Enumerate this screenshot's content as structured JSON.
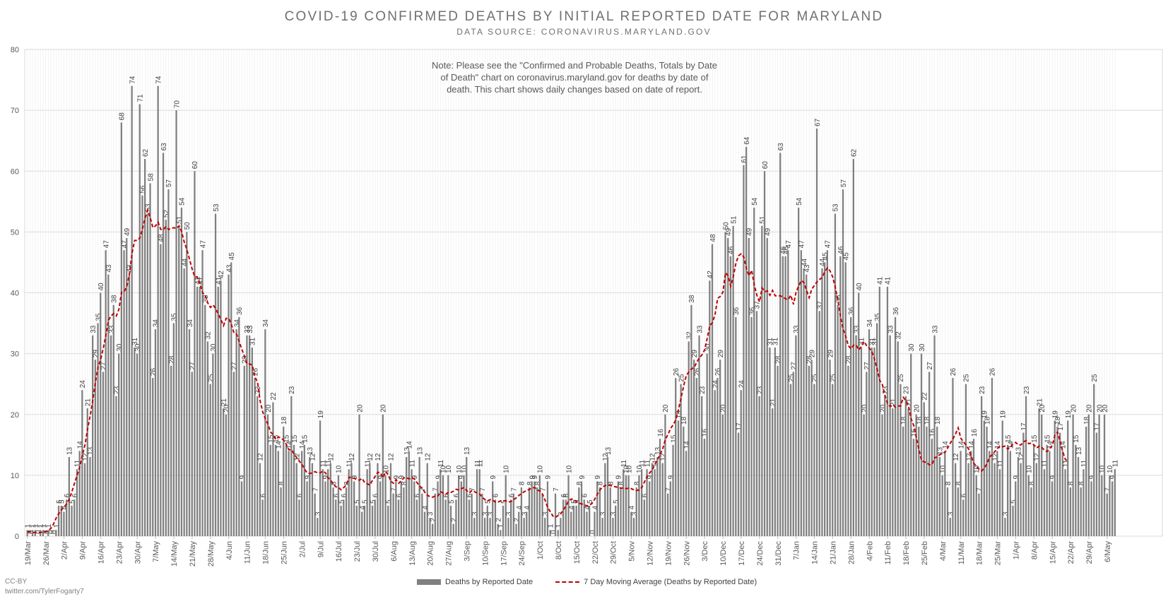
{
  "chart_data": {
    "type": "bar",
    "title": "COVID-19 CONFIRMED DEATHS BY INITIAL REPORTED DATE FOR MARYLAND",
    "subtitle": "DATA SOURCE: CORONAVIRUS.MARYLAND.GOV",
    "note": "Note: Please see the \"Confirmed and Probable Deaths, Totals by Date of Death\" chart on coronavirus.maryland.gov for deaths by date of death. This chart shows daily changes based on date of report.",
    "ylim": [
      0,
      80
    ],
    "yticks": [
      "0",
      "10",
      "20",
      "30",
      "40",
      "50",
      "60",
      "70",
      "80"
    ],
    "grid": true,
    "legend_position": "bottom",
    "x_tick_labels": [
      "19/Mar",
      "26/Mar",
      "2/Apr",
      "9/Apr",
      "16/Apr",
      "23/Apr",
      "30/Apr",
      "7/May",
      "14/May",
      "21/May",
      "28/May",
      "4/Jun",
      "11/Jun",
      "18/Jun",
      "25/Jun",
      "2/Jul",
      "9/Jul",
      "16/Jul",
      "23/Jul",
      "30/Jul",
      "6/Aug",
      "13/Aug",
      "20/Aug",
      "27/Aug",
      "3/Sep",
      "10/Sep",
      "17/Sep",
      "24/Sep",
      "1/Oct",
      "8/Oct",
      "15/Oct",
      "22/Oct",
      "29/Oct",
      "5/Nov",
      "12/Nov",
      "19/Nov",
      "26/Nov",
      "3/Dec",
      "10/Dec",
      "17/Dec",
      "24/Dec",
      "31/Dec",
      "7/Jan",
      "14/Jan",
      "21/Jan",
      "28/Jan",
      "4/Feb",
      "11/Feb",
      "18/Feb",
      "25/Feb",
      "4/Mar",
      "11/Mar",
      "18/Mar",
      "25/Mar",
      "1/Apr",
      "8/Apr",
      "15/Apr",
      "22/Apr",
      "29/Apr",
      "6/May"
    ],
    "series": [
      {
        "name": "Deaths by Reported Date",
        "type": "bar",
        "color": "#808080",
        "weekly_values": [
          [
            1,
            0,
            1,
            1,
            0,
            1,
            1
          ],
          [
            0,
            1,
            0,
            0,
            1,
            5,
            5
          ],
          [
            4,
            6,
            13,
            5,
            6,
            11,
            14
          ],
          [
            24,
            12,
            21,
            13,
            33,
            29,
            35
          ],
          [
            40,
            27,
            47,
            43,
            33,
            38,
            23
          ],
          [
            30,
            68,
            47,
            49,
            43,
            74,
            31
          ],
          [
            30,
            71,
            56,
            62,
            53,
            58,
            26
          ],
          [
            34,
            74,
            48,
            63,
            52,
            57,
            28
          ],
          [
            35,
            70,
            51,
            54,
            44,
            50,
            34
          ],
          [
            27,
            60,
            41,
            41,
            47,
            38,
            32
          ],
          [
            25,
            30,
            53,
            41,
            42,
            21,
            20
          ],
          [
            43,
            45,
            27,
            34,
            36,
            9,
            28
          ],
          [
            33,
            33,
            31,
            26,
            23,
            12,
            6
          ],
          [
            34,
            20,
            15,
            22,
            15,
            14,
            8
          ],
          [
            18,
            15,
            14,
            23,
            15,
            12,
            6
          ],
          [
            14,
            15,
            9,
            13,
            12,
            7,
            3
          ],
          [
            19,
            11,
            9,
            11,
            12,
            8,
            6
          ],
          [
            10,
            5,
            6,
            8,
            11,
            12,
            9
          ],
          [
            5,
            20,
            4,
            5,
            11,
            12,
            5
          ],
          [
            6,
            12,
            9,
            20,
            10,
            5,
            12
          ],
          [
            7,
            9,
            6,
            9,
            8,
            13,
            14
          ],
          [
            11,
            9,
            6,
            13,
            7,
            4,
            12
          ],
          [
            3,
            2,
            7,
            9,
            11,
            10,
            6
          ],
          [
            10,
            5,
            2,
            6,
            10,
            9,
            10
          ],
          [
            13,
            6,
            7,
            3,
            11,
            11,
            7
          ],
          [
            3,
            5,
            3,
            9,
            6,
            2,
            1
          ],
          [
            5,
            10,
            3,
            6,
            7,
            2,
            4
          ],
          [
            8,
            3,
            4,
            8,
            9,
            9,
            8
          ],
          [
            10,
            7,
            3,
            9,
            1,
            0,
            7
          ],
          [
            1,
            3,
            6,
            6,
            10,
            4,
            5
          ],
          [
            5,
            8,
            9,
            6,
            4,
            5,
            0
          ],
          [
            4,
            9,
            8,
            3,
            12,
            13,
            8
          ],
          [
            3,
            5,
            9,
            8,
            11,
            10,
            10
          ],
          [
            4,
            3,
            8,
            10,
            11,
            6,
            11
          ],
          [
            9,
            12,
            11,
            13,
            16,
            12,
            20
          ],
          [
            7,
            9,
            15,
            26,
            19,
            25,
            18
          ],
          [
            14,
            32,
            38,
            29,
            26,
            33,
            23
          ],
          [
            16,
            30,
            42,
            48,
            24,
            26,
            29
          ],
          [
            20,
            50,
            49,
            46,
            51,
            36,
            17
          ],
          [
            24,
            61,
            64,
            49,
            36,
            54,
            37
          ],
          [
            23,
            51,
            60,
            49,
            31,
            21,
            31
          ],
          [
            28,
            63,
            46,
            46,
            47,
            25,
            27
          ],
          [
            33,
            54,
            47,
            44,
            43,
            28,
            29
          ],
          [
            25,
            67,
            37,
            44,
            45,
            47,
            29
          ],
          [
            25,
            53,
            38,
            46,
            57,
            45,
            28
          ],
          [
            36,
            62,
            33,
            40,
            31,
            20,
            27
          ],
          [
            34,
            31,
            31,
            35,
            41,
            20,
            23
          ],
          [
            41,
            33,
            21,
            36,
            32,
            25,
            18
          ],
          [
            23,
            21,
            30,
            16,
            20,
            18,
            30
          ],
          [
            22,
            18,
            27,
            16,
            33,
            18,
            13
          ],
          [
            10,
            14,
            8,
            3,
            26,
            12,
            8
          ],
          [
            14,
            6,
            25,
            12,
            14,
            16,
            10
          ],
          [
            7,
            23,
            19,
            18,
            14,
            26,
            12
          ],
          [
            14,
            11,
            19,
            3,
            15,
            14,
            5
          ],
          [
            9,
            13,
            12,
            17,
            23,
            10,
            8
          ],
          [
            15,
            12,
            21,
            20,
            11,
            15,
            14
          ],
          [
            9,
            19,
            18,
            17,
            14,
            11,
            19
          ],
          [
            8,
            20,
            15,
            13,
            8,
            11,
            18
          ],
          [
            20,
            9,
            25,
            17,
            20,
            10,
            20
          ],
          [
            7,
            10,
            9,
            11
          ]
        ]
      },
      {
        "name": "7 Day Moving Average (Deaths by Reported Date)",
        "type": "line",
        "style": "dashed",
        "color": "#c00000",
        "weekly_values": [
          [
            0.7,
            0.7,
            0.6,
            0.6,
            0.6,
            0.6,
            0.7
          ],
          [
            0.7,
            0.9,
            1.3,
            2.0,
            3.0,
            3.7,
            4.3
          ],
          [
            4.8,
            5.3,
            6.1,
            7.3,
            8.7,
            10.0,
            11.4
          ],
          [
            13.3,
            15.0,
            17.6,
            19.8,
            22.4,
            25.3,
            27.8
          ],
          [
            29.0,
            30.9,
            33.0,
            35.5,
            36.2,
            36.6,
            36.2
          ],
          [
            37.3,
            40.1,
            40.2,
            41.0,
            43.1,
            46.5,
            48.6
          ],
          [
            48.6,
            49.0,
            50.5,
            52.3,
            53.6,
            52.3,
            50.7
          ],
          [
            51.0,
            51.6,
            50.4,
            50.4,
            50.9,
            50.4,
            50.6
          ],
          [
            50.7,
            50.6,
            51.0,
            50.0,
            48.3,
            47.1,
            45.5
          ],
          [
            43.9,
            42.6,
            42.6,
            41.5,
            40.0,
            39.6,
            38.3
          ],
          [
            37.6,
            38.0,
            37.4,
            36.5,
            35.6,
            34.6,
            35.8
          ],
          [
            35.8,
            34.8,
            33.4,
            33.2,
            32.0,
            30.7,
            29.6
          ],
          [
            28.3,
            28.3,
            28.1,
            26.2,
            25.3,
            22.2,
            20.4
          ],
          [
            19.3,
            18.4,
            17.1,
            16.7,
            15.9,
            16.3,
            16.1
          ],
          [
            15.8,
            15.1,
            14.2,
            14.2,
            13.5,
            12.9,
            12.3
          ],
          [
            11.8,
            11.0,
            10.4,
            10.3,
            10.4,
            10.6,
            10.4
          ],
          [
            10.4,
            10.7,
            10.4,
            9.6,
            9.2,
            8.5,
            8.1
          ],
          [
            8.0,
            7.6,
            8.0,
            8.4,
            9.7,
            9.6,
            9.5
          ],
          [
            9.3,
            9.2,
            9.5,
            8.8,
            8.6,
            8.4,
            9.2
          ],
          [
            9.8,
            10.5,
            10.4,
            9.6,
            10.6,
            10.1,
            9.0
          ],
          [
            8.7,
            9.3,
            8.7,
            9.1,
            9.6,
            9.6,
            9.4
          ],
          [
            9.6,
            9.4,
            8.8,
            8.2,
            7.9,
            7.2,
            6.7
          ],
          [
            6.5,
            6.4,
            6.6,
            6.6,
            7.3,
            7.1,
            6.9
          ],
          [
            7.2,
            7.2,
            7.4,
            7.7,
            7.6,
            7.8,
            8.0
          ],
          [
            7.5,
            7.1,
            7.5,
            7.3,
            7.1,
            6.9,
            6.4
          ],
          [
            6.0,
            5.8,
            6.0,
            5.9,
            5.6,
            5.6,
            5.8
          ],
          [
            5.8,
            5.8,
            5.6,
            5.7,
            6.0,
            6.3,
            6.7
          ],
          [
            7.0,
            7.3,
            7.5,
            7.7,
            7.9,
            8.0,
            7.6
          ],
          [
            7.4,
            6.9,
            5.9,
            4.7,
            4.0,
            3.3,
            3.1
          ],
          [
            3.4,
            3.7,
            4.3,
            5.0,
            5.8,
            6.1,
            6.0
          ],
          [
            5.7,
            5.4,
            5.3,
            5.1,
            5.0,
            5.1,
            5.4
          ],
          [
            6.1,
            6.9,
            7.6,
            8.1,
            8.3,
            8.4,
            8.3
          ],
          [
            8.2,
            8.1,
            8.0,
            7.9,
            7.9,
            7.8,
            7.9
          ],
          [
            7.8,
            7.6,
            7.5,
            7.6,
            8.0,
            8.9,
            9.8
          ],
          [
            10.4,
            10.9,
            11.8,
            12.6,
            13.4,
            14.4,
            15.9
          ],
          [
            16.7,
            17.7,
            18.3,
            19.1,
            20.8,
            22.7,
            24.7
          ],
          [
            26.4,
            27.0,
            27.5,
            27.7,
            28.6,
            29.3,
            29.8
          ],
          [
            30.6,
            32.5,
            34.6,
            35.1,
            36.4,
            39.1,
            39.4
          ],
          [
            40.1,
            43.3,
            42.8,
            41.1,
            42.7,
            44.9,
            46.1
          ],
          [
            46.4,
            45.9,
            44.0,
            42.8,
            43.7,
            41.3,
            39.6
          ],
          [
            38.5,
            40.8,
            40.2,
            40.3,
            39.6,
            40.4,
            39.5
          ],
          [
            39.5,
            39.5,
            39.3,
            39.0,
            38.9,
            39.6,
            38.1
          ],
          [
            40.1,
            41.1,
            42.0,
            41.7,
            40.4,
            39.2,
            40.6
          ],
          [
            41.2,
            41.8,
            42.2,
            42.5,
            43.5,
            44.1,
            43.6
          ],
          [
            42.6,
            40.9,
            38.7,
            36.1,
            34.0,
            32.8,
            31.3
          ],
          [
            30.8,
            31.4,
            31.4,
            30.6,
            31.2,
            32.0,
            31.3
          ],
          [
            30.9,
            30.3,
            29.1,
            27.5,
            25.6,
            24.9,
            23.1
          ],
          [
            21.8,
            21.3,
            21.6,
            21.2,
            21.4,
            21.4,
            22.8
          ],
          [
            22.3,
            21.4,
            19.3,
            18.2,
            16.2,
            14.2,
            12.4
          ],
          [
            12.2,
            12.1,
            11.7,
            11.8,
            12.9,
            13.0,
            13.4
          ],
          [
            13.6,
            13.8,
            14.5,
            15.3,
            16.0,
            16.8,
            17.8
          ],
          [
            16.1,
            15.5,
            15.0,
            14.3,
            13.1,
            12.0,
            11.4
          ],
          [
            11.0,
            10.7,
            11.2,
            11.9,
            13.0,
            13.4,
            13.9
          ],
          [
            14.4,
            14.8,
            14.7,
            14.8,
            14.3,
            14.6,
            15.2
          ],
          [
            15.4,
            15.0,
            15.0,
            15.5,
            15.7,
            15.2,
            15.3
          ],
          [
            15.0,
            14.5,
            14.8,
            14.6,
            14.1,
            13.9,
            14.4
          ],
          [
            14.9,
            16.6,
            17.1,
            15.6,
            13.9,
            12.6,
            12.3
          ]
        ]
      }
    ]
  },
  "legend": {
    "bar_label": "Deaths by Reported Date",
    "line_label": "7 Day Moving Average (Deaths by Reported Date)"
  },
  "credit": {
    "license": "CC-BY",
    "handle": "twitter.com/TylerFogarty7"
  }
}
